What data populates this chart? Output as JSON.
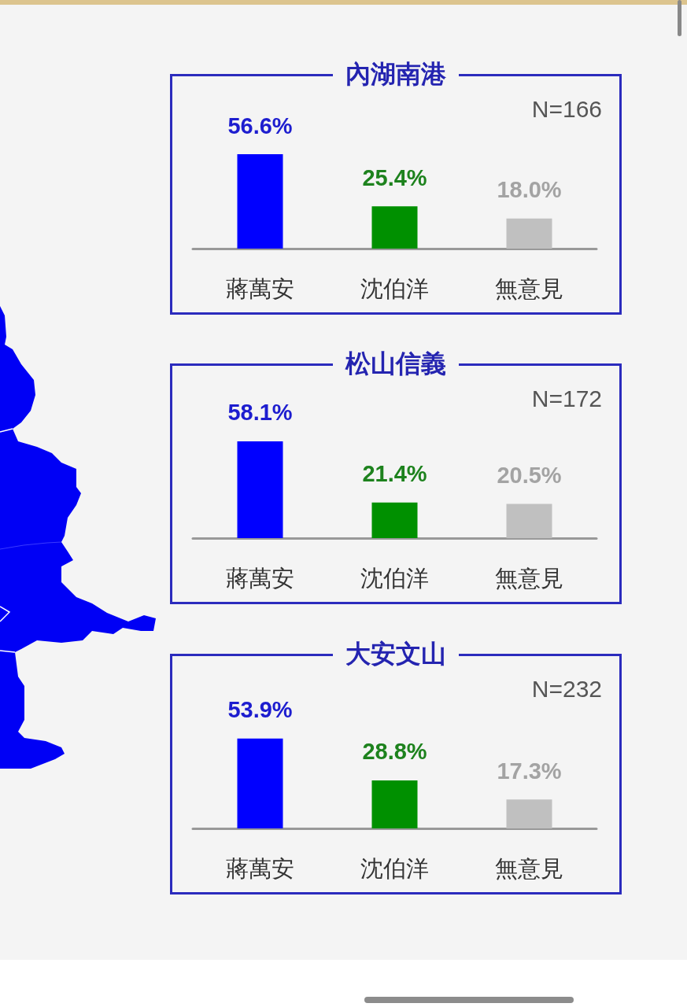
{
  "chart_data": [
    {
      "type": "bar",
      "title": "內湖南港",
      "categories": [
        "蔣萬安",
        "沈伯洋",
        "無意見"
      ],
      "values": [
        56.6,
        25.4,
        18.0
      ],
      "colors": [
        "#0000ff",
        "#009000",
        "#c0c0c0"
      ],
      "value_labels": [
        "56.6%",
        "25.4%",
        "18.0%"
      ],
      "annotations": [
        "N=166"
      ],
      "tick_labels": "x"
    },
    {
      "type": "bar",
      "title": "松山信義",
      "categories": [
        "蔣萬安",
        "沈伯洋",
        "無意見"
      ],
      "values": [
        58.1,
        21.4,
        20.5
      ],
      "colors": [
        "#0000ff",
        "#009000",
        "#c0c0c0"
      ],
      "value_labels": [
        "58.1%",
        "21.4%",
        "20.5%"
      ],
      "annotations": [
        "N=172"
      ],
      "tick_labels": "x"
    },
    {
      "type": "bar",
      "title": "大安文山",
      "categories": [
        "蔣萬安",
        "沈伯洋",
        "無意見"
      ],
      "values": [
        53.9,
        28.8,
        17.3
      ],
      "colors": [
        "#0000ff",
        "#009000",
        "#c0c0c0"
      ],
      "value_labels": [
        "53.9%",
        "28.8%",
        "17.3%"
      ],
      "annotations": [
        "N=232"
      ],
      "tick_labels": "x"
    }
  ]
}
